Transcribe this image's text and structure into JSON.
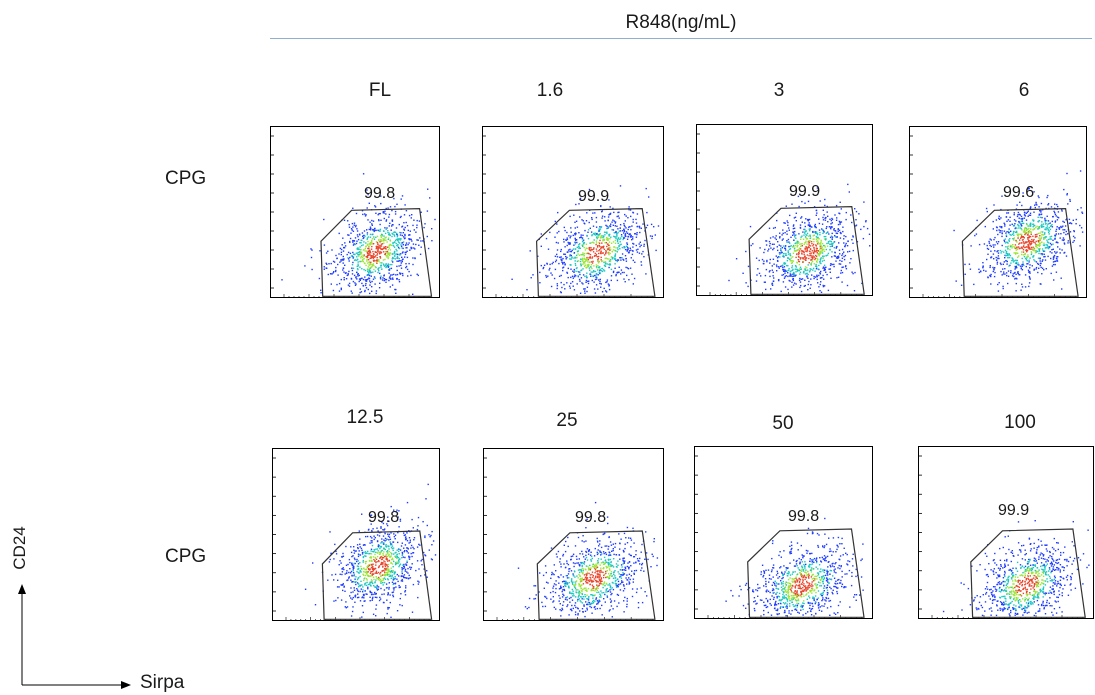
{
  "header": {
    "title": "R848(ng/mL)"
  },
  "rows": [
    {
      "label": "CPG",
      "panels": [
        {
          "column_label": "FL",
          "gate_percent": "99.8"
        },
        {
          "column_label": "1.6",
          "gate_percent": "99.9"
        },
        {
          "column_label": "3",
          "gate_percent": "99.9"
        },
        {
          "column_label": "6",
          "gate_percent": "99.6"
        }
      ]
    },
    {
      "label": "CPG",
      "panels": [
        {
          "column_label": "12.5",
          "gate_percent": "99.8"
        },
        {
          "column_label": "25",
          "gate_percent": "99.8"
        },
        {
          "column_label": "50",
          "gate_percent": "99.8"
        },
        {
          "column_label": "100",
          "gate_percent": "99.9"
        }
      ]
    }
  ],
  "axes": {
    "y_label": "CD24",
    "x_label": "Sirpa"
  },
  "colors": {
    "density_low": "#1f3cff",
    "density_mid": "#19c8c0",
    "density_high_mid": "#9be635",
    "density_peak": "#e8452a",
    "gate": "#333333",
    "header_rule": "#8fb1d0"
  },
  "chart_data": {
    "type": "scatter",
    "title": "R848(ng/mL)",
    "xlabel": "Sirpa",
    "ylabel": "CD24",
    "grid": false,
    "panels": [
      {
        "row": "CPG",
        "column": "FL",
        "gated_percent": 99.8,
        "population_center": [
          0.62,
          0.27
        ]
      },
      {
        "row": "CPG",
        "column": "1.6",
        "gated_percent": 99.9,
        "population_center": [
          0.63,
          0.27
        ]
      },
      {
        "row": "CPG",
        "column": "3",
        "gated_percent": 99.9,
        "population_center": [
          0.63,
          0.26
        ]
      },
      {
        "row": "CPG",
        "column": "6",
        "gated_percent": 99.6,
        "population_center": [
          0.66,
          0.33
        ]
      },
      {
        "row": "CPG",
        "column": "12.5",
        "gated_percent": 99.8,
        "population_center": [
          0.63,
          0.32
        ]
      },
      {
        "row": "CPG",
        "column": "25",
        "gated_percent": 99.8,
        "population_center": [
          0.61,
          0.25
        ]
      },
      {
        "row": "CPG",
        "column": "50",
        "gated_percent": 99.8,
        "population_center": [
          0.6,
          0.2
        ]
      },
      {
        "row": "CPG",
        "column": "100",
        "gated_percent": 99.9,
        "population_center": [
          0.61,
          0.2
        ]
      }
    ]
  }
}
